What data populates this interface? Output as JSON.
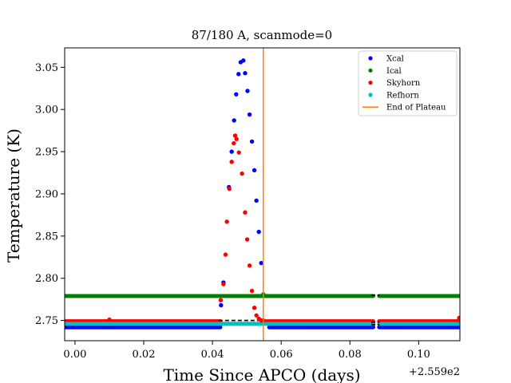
{
  "chart_data": {
    "type": "scatter",
    "title": "87/180 A, scanmode=0",
    "xlabel": "Time Since APCO (days)",
    "ylabel": "Temperature (K)",
    "x_offset_label": "+2.559e2",
    "xlim": [
      -0.003,
      0.112
    ],
    "ylim": [
      2.726,
      3.073
    ],
    "x_ticks": [
      "0.00",
      "0.02",
      "0.04",
      "0.06",
      "0.08",
      "0.10"
    ],
    "x_tick_values": [
      0.0,
      0.02,
      0.04,
      0.06,
      0.08,
      0.1
    ],
    "y_ticks": [
      "2.75",
      "2.80",
      "2.85",
      "2.90",
      "2.95",
      "3.00",
      "3.05"
    ],
    "y_tick_values": [
      2.75,
      2.8,
      2.85,
      2.9,
      2.95,
      3.0,
      3.05
    ],
    "legend_position": "top-right",
    "grid": false,
    "series": [
      {
        "name": "Xcal",
        "color": "#0000ff",
        "baseline": 2.742,
        "baseline_ranges": [
          [
            -0.003,
            0.0423
          ],
          [
            0.0565,
            0.0868
          ],
          [
            0.0885,
            0.112
          ]
        ],
        "points": [
          [
            0.0425,
            2.768
          ],
          [
            0.0432,
            2.795
          ],
          [
            0.0448,
            2.908
          ],
          [
            0.0456,
            2.95
          ],
          [
            0.0463,
            2.987
          ],
          [
            0.0469,
            3.018
          ],
          [
            0.0476,
            3.042
          ],
          [
            0.0482,
            3.056
          ],
          [
            0.049,
            3.058
          ],
          [
            0.0495,
            3.043
          ],
          [
            0.0502,
            3.022
          ],
          [
            0.0508,
            2.994
          ],
          [
            0.0515,
            2.962
          ],
          [
            0.0522,
            2.928
          ],
          [
            0.0528,
            2.892
          ],
          [
            0.0535,
            2.855
          ],
          [
            0.0542,
            2.818
          ]
        ]
      },
      {
        "name": "Ical",
        "color": "#008000",
        "baseline": 2.779,
        "baseline_ranges": [
          [
            -0.003,
            0.0868
          ],
          [
            0.0885,
            0.112
          ]
        ],
        "points": [
          [
            0.0548,
            2.781
          ]
        ]
      },
      {
        "name": "Skyhorn",
        "color": "#ff0000",
        "baseline": 2.749,
        "baseline_ranges": [
          [
            -0.003,
            0.0423
          ],
          [
            0.0556,
            0.0868
          ],
          [
            0.0885,
            0.112
          ]
        ],
        "points": [
          [
            0.01,
            2.751
          ],
          [
            0.0424,
            2.774
          ],
          [
            0.0432,
            2.793
          ],
          [
            0.0438,
            2.828
          ],
          [
            0.0442,
            2.867
          ],
          [
            0.0449,
            2.906
          ],
          [
            0.0456,
            2.938
          ],
          [
            0.0462,
            2.96
          ],
          [
            0.0466,
            2.969
          ],
          [
            0.047,
            2.965
          ],
          [
            0.0477,
            2.949
          ],
          [
            0.0486,
            2.924
          ],
          [
            0.0495,
            2.878
          ],
          [
            0.0501,
            2.846
          ],
          [
            0.0508,
            2.815
          ],
          [
            0.0515,
            2.785
          ],
          [
            0.0522,
            2.765
          ],
          [
            0.0528,
            2.756
          ],
          [
            0.0535,
            2.752
          ],
          [
            0.0542,
            2.75
          ],
          [
            0.0548,
            2.75
          ],
          [
            0.1118,
            2.753
          ]
        ]
      },
      {
        "name": "Refhorn",
        "color": "#00bfbf",
        "baseline": 2.746,
        "baseline_ranges": [
          [
            -0.003,
            0.0868
          ],
          [
            0.0885,
            0.112
          ]
        ],
        "points": []
      }
    ],
    "reference_line": {
      "name": "End of Plateau",
      "color": "#ff7f0e",
      "x": 0.0548
    },
    "dashed_lines": [
      {
        "y": 2.75,
        "x": [
          0.0418,
          0.0548
        ]
      },
      {
        "y": 2.748,
        "x": [
          0.0862,
          0.0886
        ]
      },
      {
        "y": 2.745,
        "x": [
          0.0862,
          0.0886
        ]
      },
      {
        "y": 2.78,
        "x": [
          0.0862,
          0.0886
        ]
      }
    ]
  }
}
